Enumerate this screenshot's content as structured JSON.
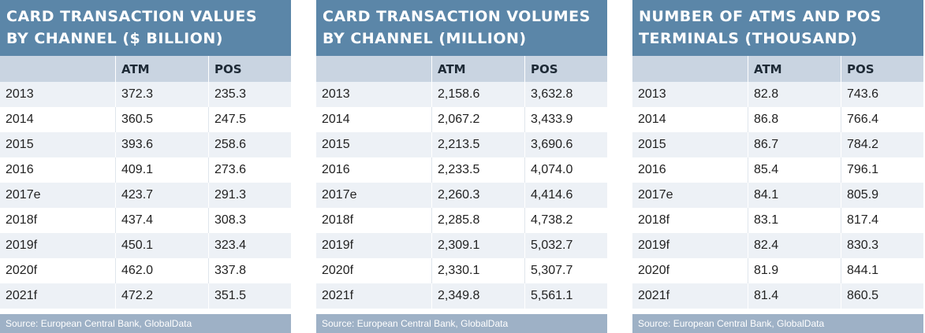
{
  "chart_data": [
    {
      "type": "table",
      "title": "CARD TRANSACTION VALUES BY CHANNEL ($ BILLION)",
      "columns": [
        "",
        "ATM",
        "POS"
      ],
      "rows": [
        [
          "2013",
          "372.3",
          "235.3"
        ],
        [
          "2014",
          "360.5",
          "247.5"
        ],
        [
          "2015",
          "393.6",
          "258.6"
        ],
        [
          "2016",
          "409.1",
          "273.6"
        ],
        [
          "2017e",
          "423.7",
          "291.3"
        ],
        [
          "2018f",
          "437.4",
          "308.3"
        ],
        [
          "2019f",
          "450.1",
          "323.4"
        ],
        [
          "2020f",
          "462.0",
          "337.8"
        ],
        [
          "2021f",
          "472.2",
          "351.5"
        ]
      ],
      "source": "Source: European Central Bank, GlobalData"
    },
    {
      "type": "table",
      "title": "CARD TRANSACTION VOLUMES BY CHANNEL (MILLION)",
      "columns": [
        "",
        "ATM",
        "POS"
      ],
      "rows": [
        [
          "2013",
          "2,158.6",
          "3,632.8"
        ],
        [
          "2014",
          "2,067.2",
          "3,433.9"
        ],
        [
          "2015",
          "2,213.5",
          "3,690.6"
        ],
        [
          "2016",
          "2,233.5",
          "4,074.0"
        ],
        [
          "2017e",
          "2,260.3",
          "4,414.6"
        ],
        [
          "2018f",
          "2,285.8",
          "4,738.2"
        ],
        [
          "2019f",
          "2,309.1",
          "5,032.7"
        ],
        [
          "2020f",
          "2,330.1",
          "5,307.7"
        ],
        [
          "2021f",
          "2,349.8",
          "5,561.1"
        ]
      ],
      "source": "Source: European Central Bank, GlobalData"
    },
    {
      "type": "table",
      "title": "NUMBER OF ATMS AND POS TERMINALS (THOUSAND)",
      "columns": [
        "",
        "ATM",
        "POS"
      ],
      "rows": [
        [
          "2013",
          "82.8",
          "743.6"
        ],
        [
          "2014",
          "86.8",
          "766.4"
        ],
        [
          "2015",
          "86.7",
          "784.2"
        ],
        [
          "2016",
          "85.4",
          "796.1"
        ],
        [
          "2017e",
          "84.1",
          "805.9"
        ],
        [
          "2018f",
          "83.1",
          "817.4"
        ],
        [
          "2019f",
          "82.4",
          "830.3"
        ],
        [
          "2020f",
          "81.9",
          "844.1"
        ],
        [
          "2021f",
          "81.4",
          "860.5"
        ]
      ],
      "source": "Source: European Central Bank, GlobalData"
    }
  ],
  "colors": {
    "title_bg": "#5b86a8",
    "header_bg": "#c9d4e1",
    "stripe_bg": "#edf1f6",
    "source_bg": "#9eb1c6"
  }
}
